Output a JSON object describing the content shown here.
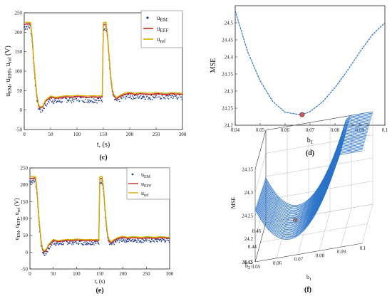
{
  "chart_data": [
    {
      "panel": "(c)",
      "type": "line",
      "xlabel": "t, (s)",
      "ylabel": "u_EM, u_EFF, u_ref (V)",
      "xlim": [
        0,
        300
      ],
      "ylim": [
        -50,
        250
      ],
      "xticks": [
        0,
        50,
        100,
        150,
        200,
        250,
        300
      ],
      "yticks": [
        -50,
        0,
        50,
        100,
        150,
        200,
        250
      ],
      "grid": false,
      "legend_position": "top-right",
      "series": [
        {
          "name": "u_EM",
          "style": "markers",
          "color": "#1f3a93",
          "x": [
            0,
            5,
            12,
            15,
            18,
            21,
            24,
            27,
            30,
            35,
            40,
            50,
            60,
            70,
            80,
            90,
            100,
            110,
            120,
            130,
            140,
            148,
            150,
            155,
            158,
            161,
            164,
            167,
            170,
            175,
            180,
            190,
            200,
            210,
            220,
            230,
            240,
            250,
            260,
            270,
            280,
            290,
            300
          ],
          "y": [
            213,
            215,
            214,
            180,
            120,
            70,
            30,
            8,
            -2,
            2,
            15,
            28,
            22,
            25,
            28,
            27,
            30,
            28,
            26,
            27,
            26,
            28,
            212,
            213,
            185,
            130,
            80,
            45,
            30,
            22,
            28,
            35,
            38,
            34,
            36,
            35,
            34,
            36,
            35,
            34,
            36,
            35,
            34
          ]
        },
        {
          "name": "u_EFF",
          "style": "line",
          "color": "#c62828",
          "x": [
            0,
            5,
            12,
            15,
            18,
            21,
            24,
            27,
            30,
            35,
            40,
            50,
            60,
            70,
            80,
            90,
            100,
            110,
            120,
            130,
            140,
            148,
            150,
            155,
            158,
            161,
            164,
            167,
            170,
            175,
            180,
            190,
            200,
            210,
            220,
            230,
            240,
            250,
            260,
            270,
            280,
            290,
            300
          ],
          "y": [
            220,
            222,
            221,
            185,
            125,
            75,
            35,
            12,
            5,
            8,
            22,
            33,
            30,
            32,
            34,
            33,
            35,
            34,
            33,
            34,
            33,
            34,
            220,
            221,
            190,
            135,
            85,
            50,
            36,
            28,
            34,
            40,
            43,
            40,
            42,
            41,
            40,
            42,
            41,
            40,
            42,
            41,
            40
          ]
        },
        {
          "name": "u_ref",
          "style": "line",
          "color": "#d4b000",
          "x": [
            0,
            5,
            12,
            15,
            18,
            21,
            24,
            27,
            30,
            35,
            40,
            50,
            60,
            70,
            80,
            90,
            100,
            110,
            120,
            130,
            140,
            148,
            150,
            155,
            158,
            161,
            164,
            167,
            170,
            175,
            180,
            190,
            200,
            210,
            220,
            230,
            240,
            250,
            260,
            270,
            280,
            290,
            300
          ],
          "y": [
            225,
            226,
            225,
            190,
            130,
            80,
            40,
            15,
            8,
            10,
            25,
            36,
            33,
            35,
            37,
            36,
            38,
            37,
            36,
            37,
            36,
            37,
            225,
            226,
            195,
            140,
            90,
            54,
            40,
            32,
            37,
            43,
            46,
            43,
            45,
            44,
            43,
            45,
            44,
            43,
            45,
            44,
            43
          ]
        }
      ]
    },
    {
      "panel": "(d)",
      "type": "line",
      "xlabel": "b_1",
      "ylabel": "MSE",
      "xlim": [
        0.04,
        0.1
      ],
      "ylim": [
        24.2,
        24.55
      ],
      "xticks": [
        0.04,
        0.05,
        0.06,
        0.07,
        0.08,
        0.09,
        0.1
      ],
      "yticks": [
        24.2,
        24.25,
        24.3,
        24.35,
        24.4,
        24.45,
        24.5
      ],
      "grid": false,
      "series": [
        {
          "color": "#2a73c9",
          "x": [
            0.04,
            0.045,
            0.05,
            0.055,
            0.06,
            0.065,
            0.0668,
            0.07,
            0.075,
            0.08,
            0.085,
            0.09,
            0.095,
            0.1
          ],
          "y": [
            24.535,
            24.415,
            24.33,
            24.27,
            24.238,
            24.232,
            24.231,
            24.24,
            24.268,
            24.31,
            24.36,
            24.415,
            24.465,
            24.5
          ]
        }
      ],
      "marker": {
        "x": 0.0668,
        "y": 24.231,
        "color": "#d9534f"
      }
    },
    {
      "panel": "(e)",
      "type": "line",
      "xlabel": "t, (s)",
      "ylabel": "u_EM, u_EFF, u_ref (V)",
      "xlim": [
        0,
        300
      ],
      "ylim": [
        -50,
        250
      ],
      "xticks": [
        0,
        50,
        100,
        150,
        200,
        250,
        300
      ],
      "yticks": [
        -50,
        0,
        50,
        100,
        150,
        200,
        250
      ],
      "grid": false,
      "legend_position": "top-right",
      "series": [
        {
          "name": "u_EM",
          "style": "markers",
          "color": "#1f3a93",
          "x": [
            0,
            5,
            12,
            15,
            18,
            21,
            24,
            27,
            30,
            35,
            40,
            50,
            60,
            70,
            80,
            90,
            100,
            110,
            120,
            130,
            140,
            148,
            150,
            155,
            158,
            161,
            164,
            167,
            170,
            175,
            180,
            190,
            200,
            210,
            220,
            230,
            240,
            250,
            260,
            270,
            280,
            290,
            300
          ],
          "y": [
            210,
            212,
            211,
            178,
            118,
            68,
            25,
            3,
            -8,
            -2,
            12,
            30,
            24,
            27,
            30,
            29,
            31,
            29,
            28,
            29,
            28,
            30,
            209,
            211,
            180,
            125,
            75,
            40,
            25,
            20,
            28,
            35,
            38,
            35,
            37,
            36,
            35,
            37,
            36,
            35,
            37,
            36,
            35
          ]
        },
        {
          "name": "u_EFF",
          "style": "line",
          "color": "#c62828",
          "x": [
            0,
            5,
            12,
            15,
            18,
            21,
            24,
            27,
            30,
            35,
            40,
            50,
            60,
            70,
            80,
            90,
            100,
            110,
            120,
            130,
            140,
            148,
            150,
            155,
            158,
            161,
            164,
            167,
            170,
            175,
            180,
            190,
            200,
            210,
            220,
            230,
            240,
            250,
            260,
            270,
            280,
            290,
            300
          ],
          "y": [
            218,
            220,
            219,
            183,
            122,
            72,
            30,
            8,
            0,
            5,
            20,
            35,
            31,
            33,
            35,
            34,
            36,
            35,
            34,
            35,
            34,
            35,
            218,
            220,
            188,
            132,
            82,
            48,
            33,
            27,
            34,
            41,
            44,
            41,
            43,
            42,
            41,
            43,
            42,
            41,
            43,
            42,
            41
          ]
        },
        {
          "name": "u_ref",
          "style": "line",
          "color": "#d4b000",
          "x": [
            0,
            5,
            12,
            15,
            18,
            21,
            24,
            27,
            30,
            35,
            40,
            50,
            60,
            70,
            80,
            90,
            100,
            110,
            120,
            130,
            140,
            148,
            150,
            155,
            158,
            161,
            164,
            167,
            170,
            175,
            180,
            190,
            200,
            210,
            220,
            230,
            240,
            250,
            260,
            270,
            280,
            290,
            300
          ],
          "y": [
            224,
            225,
            224,
            188,
            128,
            78,
            35,
            12,
            5,
            8,
            23,
            38,
            34,
            36,
            38,
            37,
            39,
            38,
            37,
            38,
            37,
            38,
            224,
            225,
            193,
            137,
            87,
            52,
            37,
            31,
            37,
            44,
            47,
            44,
            46,
            45,
            44,
            46,
            45,
            44,
            46,
            45,
            44
          ]
        }
      ]
    },
    {
      "panel": "(f)",
      "type": "surface",
      "xlabel": "b_1",
      "ylabel": "b_2",
      "zlabel": "MSE",
      "xticks": [
        0.05,
        0.06,
        0.07,
        0.08,
        0.09,
        0.1
      ],
      "yticks": [
        0.42,
        0.44,
        0.46
      ],
      "zticks": [
        24.15,
        24.2,
        24.25,
        24.3,
        24.35
      ],
      "color": "#2a73c9",
      "marker_color": "#d9534f"
    }
  ],
  "panel_labels": [
    "(c)",
    "(d)",
    "(e)",
    "(f)"
  ]
}
